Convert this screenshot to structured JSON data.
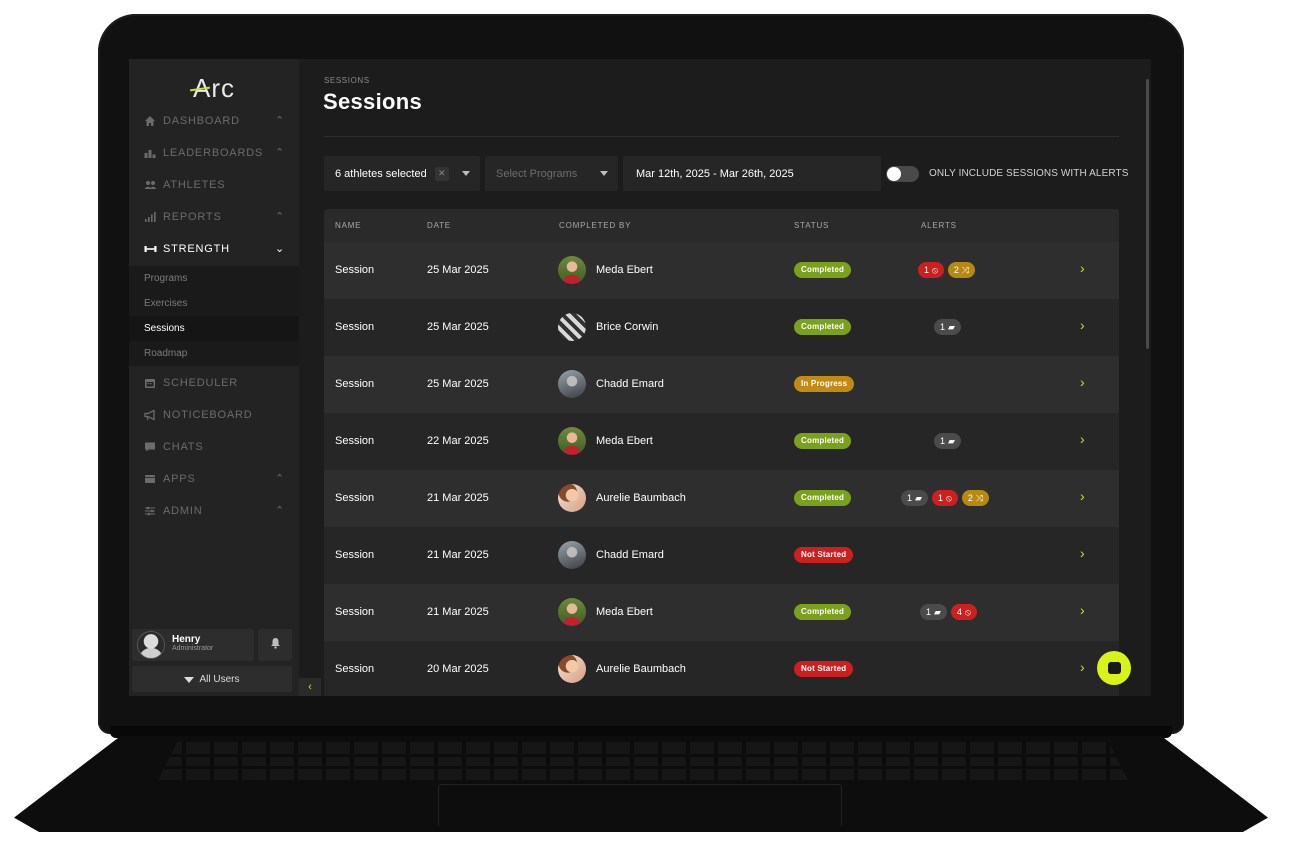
{
  "app": {
    "logo": "Arc"
  },
  "sidebar": {
    "nav": [
      {
        "label": "DASHBOARD",
        "icon": "home-icon",
        "chevron": "^"
      },
      {
        "label": "LEADERBOARDS",
        "icon": "podium-icon",
        "chevron": "^"
      },
      {
        "label": "ATHLETES",
        "icon": "users-icon",
        "chevron": ""
      },
      {
        "label": "REPORTS",
        "icon": "bar-chart-icon",
        "chevron": "^"
      },
      {
        "label": "STRENGTH",
        "icon": "dumbbell-icon",
        "chevron": "v"
      },
      {
        "label": "SCHEDULER",
        "icon": "calendar-icon",
        "chevron": ""
      },
      {
        "label": "NOTICEBOARD",
        "icon": "megaphone-icon",
        "chevron": ""
      },
      {
        "label": "CHATS",
        "icon": "chat-icon",
        "chevron": ""
      },
      {
        "label": "APPS",
        "icon": "apps-icon",
        "chevron": "^"
      },
      {
        "label": "ADMIN",
        "icon": "sliders-icon",
        "chevron": "^"
      }
    ],
    "strength_sub": [
      "Programs",
      "Exercises",
      "Sessions",
      "Roadmap"
    ],
    "active_sub": "Sessions",
    "user": {
      "name": "Henry",
      "role": "Administrator"
    },
    "all_users_label": "All Users",
    "collapse_glyph": "‹"
  },
  "header": {
    "breadcrumb": "SESSIONS",
    "title": "Sessions"
  },
  "filters": {
    "athletes_value": "6 athletes selected",
    "clear_glyph": "✕",
    "programs_placeholder": "Select Programs",
    "date_range": "Mar 12th, 2025 - Mar 26th, 2025",
    "alerts_toggle_label": "ONLY INCLUDE SESSIONS WITH ALERTS",
    "alerts_toggle_on": false
  },
  "table": {
    "columns": [
      "NAME",
      "DATE",
      "COMPLETED BY",
      "STATUS",
      "ALERTS"
    ],
    "rows": [
      {
        "name": "Session",
        "date": "25 Mar 2025",
        "athlete": "Meda Ebert",
        "status": "Completed",
        "alerts": [
          {
            "type": "red",
            "count": "1",
            "icon": "⦸"
          },
          {
            "type": "amber",
            "count": "2",
            "icon": "⤨"
          }
        ]
      },
      {
        "name": "Session",
        "date": "25 Mar 2025",
        "athlete": "Brice Corwin",
        "status": "Completed",
        "alerts": [
          {
            "type": "gray",
            "count": "1",
            "icon": "▰"
          }
        ]
      },
      {
        "name": "Session",
        "date": "25 Mar 2025",
        "athlete": "Chadd Emard",
        "status": "In Progress",
        "alerts": []
      },
      {
        "name": "Session",
        "date": "22 Mar 2025",
        "athlete": "Meda Ebert",
        "status": "Completed",
        "alerts": [
          {
            "type": "gray",
            "count": "1",
            "icon": "▰"
          }
        ]
      },
      {
        "name": "Session",
        "date": "21 Mar 2025",
        "athlete": "Aurelie Baumbach",
        "status": "Completed",
        "alerts": [
          {
            "type": "gray",
            "count": "1",
            "icon": "▰"
          },
          {
            "type": "red",
            "count": "1",
            "icon": "⦸"
          },
          {
            "type": "amber",
            "count": "2",
            "icon": "⤨"
          }
        ]
      },
      {
        "name": "Session",
        "date": "21 Mar 2025",
        "athlete": "Chadd Emard",
        "status": "Not Started",
        "alerts": []
      },
      {
        "name": "Session",
        "date": "21 Mar 2025",
        "athlete": "Meda Ebert",
        "status": "Completed",
        "alerts": [
          {
            "type": "gray",
            "count": "1",
            "icon": "▰"
          },
          {
            "type": "red",
            "count": "4",
            "icon": "⦸"
          }
        ]
      },
      {
        "name": "Session",
        "date": "20 Mar 2025",
        "athlete": "Aurelie Baumbach",
        "status": "Not Started",
        "alerts": []
      }
    ],
    "row_chevron": "›"
  },
  "colors": {
    "accent": "#c9e02a",
    "completed": "#7aa11c",
    "in_progress": "#c28a12",
    "not_started": "#cc1f1f"
  }
}
